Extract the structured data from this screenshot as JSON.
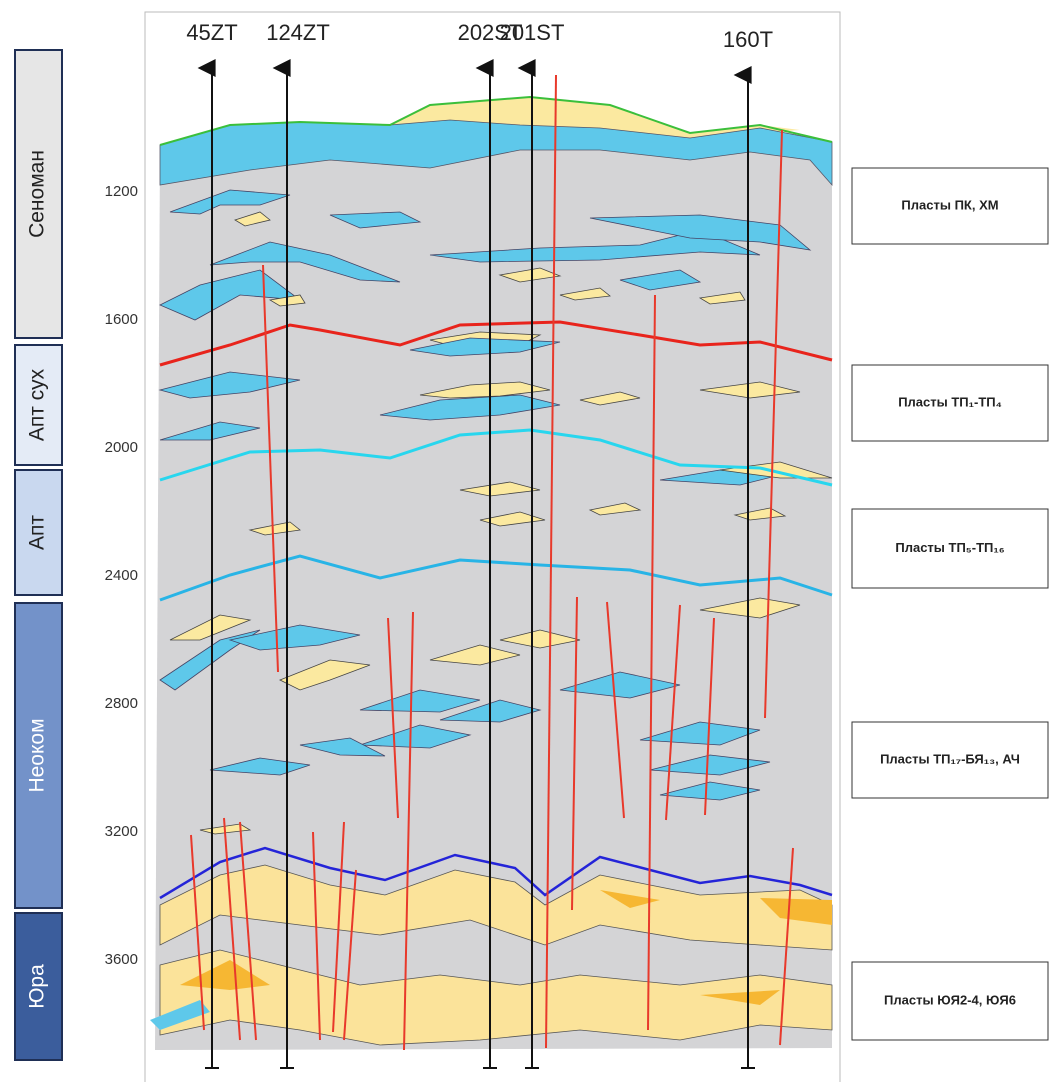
{
  "wells": [
    "45ZT",
    "124ZT",
    "202ST",
    "201ST",
    "160T"
  ],
  "stratigraphy": [
    "Сеноман",
    "Апт сух",
    "Апт",
    "Неоком",
    "Юра"
  ],
  "depths": [
    1200,
    1600,
    2000,
    2400,
    2800,
    3200,
    3600
  ],
  "layers": [
    "Пласты ПК, ХМ",
    "Пласты ТП₁-ТП₄",
    "Пласты ТП₅-ТП₁₆",
    "Пласты ТП₁₇-БЯ₁₃, АЧ",
    "Пласты ЮЯ2-4, ЮЯ6"
  ]
}
